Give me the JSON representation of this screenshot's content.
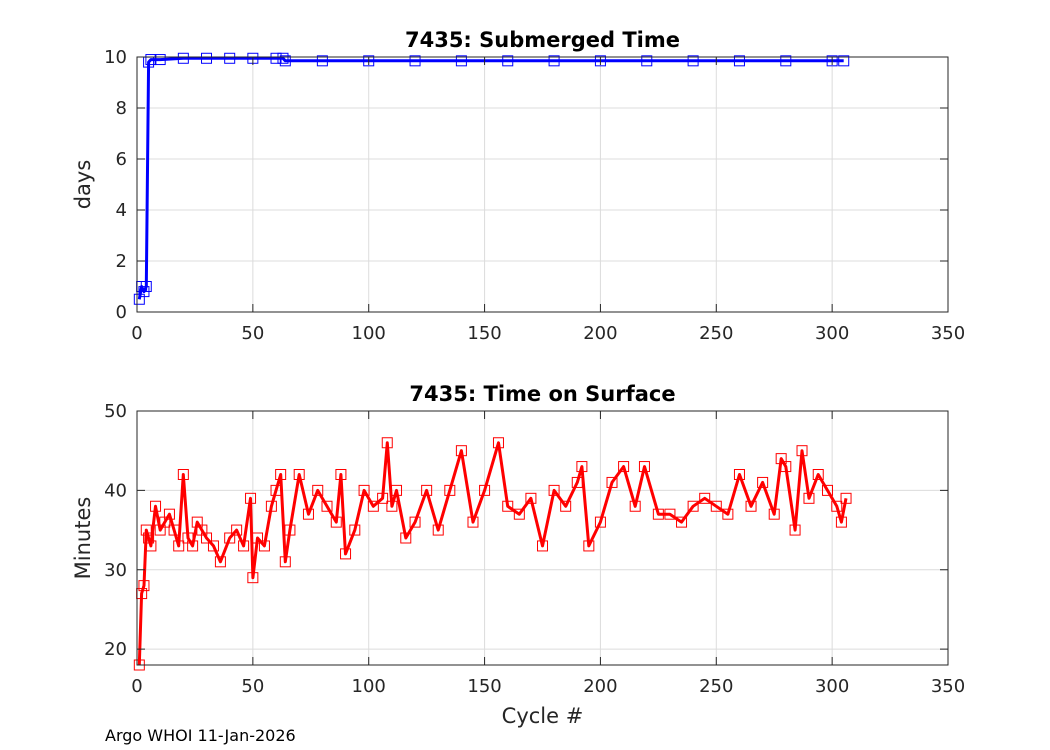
{
  "footer_text": "Argo WHOI 11-Jan-2026",
  "chart_data": [
    {
      "type": "line",
      "title": "7435: Submerged Time",
      "xlabel": "",
      "ylabel": "days",
      "xlim": [
        0,
        350
      ],
      "ylim": [
        0,
        10
      ],
      "xticks": [
        0,
        50,
        100,
        150,
        200,
        250,
        300,
        350
      ],
      "yticks": [
        0,
        2,
        4,
        6,
        8,
        10
      ],
      "grid": true,
      "color": "#0000ff",
      "marker": "square",
      "series": [
        {
          "x": [
            1,
            2,
            3,
            4,
            5,
            6,
            10,
            20,
            30,
            40,
            50,
            60,
            63,
            64,
            80,
            100,
            120,
            140,
            160,
            180,
            200,
            220,
            240,
            260,
            280,
            300,
            305
          ],
          "values": [
            0.5,
            1.0,
            0.8,
            1.0,
            9.8,
            9.9,
            9.9,
            9.95,
            9.95,
            9.95,
            9.95,
            9.95,
            9.95,
            9.85,
            9.85,
            9.85,
            9.85,
            9.85,
            9.85,
            9.85,
            9.85,
            9.85,
            9.85,
            9.85,
            9.85,
            9.85,
            9.85
          ]
        }
      ]
    },
    {
      "type": "line",
      "title": "7435: Time on Surface",
      "xlabel": "Cycle #",
      "ylabel": "Minutes",
      "xlim": [
        0,
        350
      ],
      "ylim": [
        18,
        50
      ],
      "xticks": [
        0,
        50,
        100,
        150,
        200,
        250,
        300,
        350
      ],
      "yticks": [
        20,
        30,
        40,
        50
      ],
      "grid": true,
      "color": "#ff0000",
      "marker": "square",
      "series": [
        {
          "x": [
            1,
            2,
            3,
            4,
            5,
            6,
            8,
            10,
            12,
            14,
            16,
            18,
            20,
            22,
            24,
            26,
            28,
            30,
            33,
            36,
            40,
            43,
            46,
            49,
            50,
            52,
            55,
            58,
            60,
            62,
            64,
            66,
            70,
            74,
            78,
            82,
            86,
            88,
            90,
            94,
            98,
            102,
            106,
            108,
            110,
            112,
            116,
            120,
            125,
            130,
            135,
            140,
            145,
            150,
            156,
            160,
            165,
            170,
            175,
            180,
            185,
            190,
            192,
            195,
            200,
            205,
            210,
            215,
            219,
            225,
            230,
            235,
            240,
            245,
            250,
            255,
            260,
            265,
            270,
            275,
            278,
            280,
            284,
            287,
            290,
            294,
            298,
            302,
            304,
            306
          ],
          "values": [
            18,
            27,
            28,
            35,
            34,
            33,
            38,
            35,
            36,
            37,
            35,
            33,
            42,
            34,
            33,
            36,
            35,
            34,
            33,
            31,
            34,
            35,
            33,
            39,
            29,
            34,
            33,
            38,
            40,
            42,
            31,
            35,
            42,
            37,
            40,
            38,
            36,
            42,
            32,
            35,
            40,
            38,
            39,
            46,
            38,
            40,
            34,
            36,
            40,
            35,
            40,
            45,
            36,
            40,
            46,
            38,
            37,
            39,
            33,
            40,
            38,
            41,
            43,
            33,
            36,
            41,
            43,
            38,
            43,
            37,
            37,
            36,
            38,
            39,
            38,
            37,
            42,
            38,
            41,
            37,
            44,
            43,
            35,
            45,
            39,
            42,
            40,
            38,
            36,
            39
          ]
        }
      ]
    }
  ]
}
